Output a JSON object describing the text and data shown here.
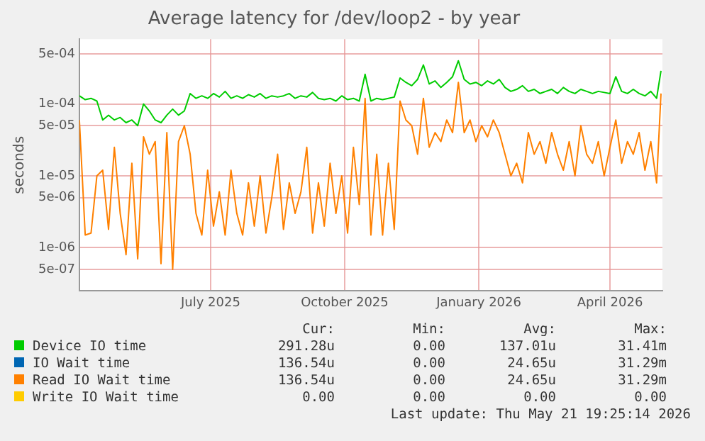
{
  "chart_data": {
    "type": "line",
    "title": "Average latency for /dev/loop2 - by year",
    "ylabel": "seconds",
    "log": true,
    "grid": true,
    "legend": "bottom",
    "marker": "none",
    "line_style": "solid",
    "x": [
      "2025-04-17",
      "2025-04-21",
      "2025-04-25",
      "2025-04-29",
      "2025-05-03",
      "2025-05-07",
      "2025-05-11",
      "2025-05-15",
      "2025-05-19",
      "2025-05-23",
      "2025-05-27",
      "2025-05-31",
      "2025-06-04",
      "2025-06-08",
      "2025-06-12",
      "2025-06-16",
      "2025-06-20",
      "2025-06-24",
      "2025-06-28",
      "2025-07-02",
      "2025-07-06",
      "2025-07-10",
      "2025-07-14",
      "2025-07-18",
      "2025-07-22",
      "2025-07-26",
      "2025-07-30",
      "2025-08-03",
      "2025-08-07",
      "2025-08-11",
      "2025-08-15",
      "2025-08-19",
      "2025-08-23",
      "2025-08-27",
      "2025-08-31",
      "2025-09-04",
      "2025-09-08",
      "2025-09-12",
      "2025-09-16",
      "2025-09-20",
      "2025-09-24",
      "2025-09-28",
      "2025-10-02",
      "2025-10-06",
      "2025-10-10",
      "2025-10-14",
      "2025-10-18",
      "2025-10-22",
      "2025-10-26",
      "2025-10-30",
      "2025-11-03",
      "2025-11-07",
      "2025-11-11",
      "2025-11-15",
      "2025-11-19",
      "2025-11-23",
      "2025-11-27",
      "2025-12-01",
      "2025-12-05",
      "2025-12-09",
      "2025-12-13",
      "2025-12-17",
      "2025-12-21",
      "2025-12-25",
      "2025-12-29",
      "2026-01-02",
      "2026-01-06",
      "2026-01-10",
      "2026-01-14",
      "2026-01-18",
      "2026-01-22",
      "2026-01-26",
      "2026-01-30",
      "2026-02-03",
      "2026-02-07",
      "2026-02-11",
      "2026-02-15",
      "2026-02-19",
      "2026-02-23",
      "2026-02-27",
      "2026-03-03",
      "2026-03-07",
      "2026-03-11",
      "2026-03-15",
      "2026-03-19",
      "2026-03-23",
      "2026-03-27",
      "2026-03-31",
      "2026-04-04",
      "2026-04-08",
      "2026-04-12",
      "2026-04-16",
      "2026-04-20",
      "2026-04-24",
      "2026-04-28",
      "2026-05-02",
      "2026-05-06",
      "2026-05-10",
      "2026-05-14",
      "2026-05-18",
      "2026-05-21"
    ],
    "xlim": [
      "2025-04-17",
      "2026-05-22"
    ],
    "xticks": [
      {
        "value": "2025-07-16",
        "label": "July 2025"
      },
      {
        "value": "2025-10-16",
        "label": "October 2025"
      },
      {
        "value": "2026-01-16",
        "label": "January 2026"
      },
      {
        "value": "2026-04-16",
        "label": "April 2026"
      }
    ],
    "ylim": [
      2.5e-07,
      0.0008
    ],
    "yticks": [
      {
        "value": 5e-07,
        "label": "5e-07"
      },
      {
        "value": 1e-06,
        "label": "1e-06"
      },
      {
        "value": 5e-06,
        "label": "5e-06"
      },
      {
        "value": 1e-05,
        "label": "1e-05"
      },
      {
        "value": 5e-05,
        "label": "5e-05"
      },
      {
        "value": 0.0001,
        "label": "1e-04"
      },
      {
        "value": 0.0005,
        "label": "5e-04"
      }
    ],
    "series": [
      {
        "name": "Device IO time",
        "color": "#00cc00",
        "values": [
          0.00013,
          0.000115,
          0.00012,
          0.00011,
          6e-05,
          7e-05,
          6e-05,
          6.5e-05,
          5.5e-05,
          6e-05,
          5e-05,
          0.0001,
          8e-05,
          6e-05,
          5.5e-05,
          7e-05,
          8.5e-05,
          7e-05,
          8e-05,
          0.00014,
          0.00012,
          0.00013,
          0.00012,
          0.00014,
          0.000125,
          0.00015,
          0.00012,
          0.00013,
          0.00012,
          0.000135,
          0.000125,
          0.00014,
          0.00012,
          0.00013,
          0.000125,
          0.00013,
          0.00014,
          0.00012,
          0.00013,
          0.000125,
          0.000145,
          0.00012,
          0.000115,
          0.00012,
          0.00011,
          0.00013,
          0.000115,
          0.00012,
          0.00011,
          0.00026,
          0.00011,
          0.00012,
          0.000115,
          0.00012,
          0.000125,
          0.00023,
          0.0002,
          0.00018,
          0.00022,
          0.00035,
          0.00019,
          0.00021,
          0.00017,
          0.0002,
          0.00024,
          0.0004,
          0.00022,
          0.00019,
          0.0002,
          0.00018,
          0.00021,
          0.00019,
          0.00022,
          0.00017,
          0.00015,
          0.00016,
          0.00018,
          0.00015,
          0.00016,
          0.00014,
          0.00015,
          0.00016,
          0.00014,
          0.00017,
          0.00015,
          0.00014,
          0.00016,
          0.00015,
          0.00014,
          0.00015,
          0.000145,
          0.00014,
          0.00024,
          0.00015,
          0.00014,
          0.00016,
          0.00014,
          0.00013,
          0.00015,
          0.00012,
          0.00029
        ]
      },
      {
        "name": "IO Wait time",
        "color": "#0066b3",
        "values": [
          null,
          null,
          null,
          null,
          null,
          null,
          null,
          null,
          null,
          null,
          null,
          null,
          null,
          null,
          null,
          null,
          null,
          null,
          null,
          null,
          null,
          null,
          null,
          null,
          null,
          null,
          null,
          null,
          null,
          null,
          null,
          null,
          null,
          null,
          null,
          null,
          null,
          null,
          null,
          null,
          null,
          null,
          null,
          null,
          null,
          null,
          null,
          null,
          null,
          null,
          null,
          null,
          null,
          null,
          null,
          null,
          null,
          null,
          null,
          null,
          null,
          null,
          null,
          null,
          null,
          null,
          null,
          null,
          null,
          null,
          null,
          null,
          null,
          null,
          null,
          null,
          null,
          null,
          null,
          null,
          null,
          null,
          null,
          null,
          null,
          null,
          null,
          null,
          null,
          null,
          null,
          null,
          null,
          null,
          null,
          null,
          null,
          null,
          null,
          null,
          null
        ]
      },
      {
        "name": "Read IO Wait time",
        "color": "#ff8000",
        "values": [
          6e-05,
          1.5e-06,
          1.6e-06,
          1e-05,
          1.2e-05,
          1.8e-06,
          2.5e-05,
          3e-06,
          8e-07,
          1.5e-05,
          7e-07,
          3.5e-05,
          2e-05,
          3e-05,
          6e-07,
          4e-05,
          5e-07,
          3e-05,
          5e-05,
          2e-05,
          3e-06,
          1.5e-06,
          1.2e-05,
          2e-06,
          6e-06,
          1.5e-06,
          1.2e-05,
          3e-06,
          1.5e-06,
          8e-06,
          2e-06,
          1e-05,
          1.6e-06,
          5e-06,
          2e-05,
          1.8e-06,
          8e-06,
          3e-06,
          6e-06,
          2.5e-05,
          1.6e-06,
          8e-06,
          2e-06,
          1.5e-05,
          3e-06,
          1e-05,
          1.6e-06,
          2.5e-05,
          4e-06,
          0.00012,
          1.5e-06,
          2e-05,
          1.5e-06,
          1.5e-05,
          1.8e-06,
          0.00011,
          6e-05,
          5e-05,
          2e-05,
          0.00012,
          2.5e-05,
          4e-05,
          3e-05,
          6e-05,
          4e-05,
          0.0002,
          4e-05,
          6e-05,
          3e-05,
          5e-05,
          3.5e-05,
          6e-05,
          4e-05,
          2e-05,
          1e-05,
          1.5e-05,
          8e-06,
          4e-05,
          2e-05,
          3e-05,
          1.5e-05,
          4e-05,
          2e-05,
          1.2e-05,
          3e-05,
          1e-05,
          5e-05,
          2e-05,
          1.5e-05,
          3e-05,
          1e-05,
          2.5e-05,
          6e-05,
          1.5e-05,
          3e-05,
          2e-05,
          4e-05,
          1.2e-05,
          3e-05,
          8e-06,
          0.00014
        ]
      },
      {
        "name": "Write IO Wait time",
        "color": "#ffcc00",
        "values": [
          null,
          null,
          null,
          null,
          null,
          null,
          null,
          null,
          null,
          null,
          null,
          null,
          null,
          null,
          null,
          null,
          null,
          null,
          null,
          null,
          null,
          null,
          null,
          null,
          null,
          null,
          null,
          null,
          null,
          null,
          null,
          null,
          null,
          null,
          null,
          null,
          null,
          null,
          null,
          null,
          null,
          null,
          null,
          null,
          null,
          null,
          null,
          null,
          null,
          null,
          null,
          null,
          null,
          null,
          null,
          null,
          null,
          null,
          null,
          null,
          null,
          null,
          null,
          null,
          null,
          null,
          null,
          null,
          null,
          null,
          null,
          null,
          null,
          null,
          null,
          null,
          null,
          null,
          null,
          null,
          null,
          null,
          null,
          null,
          null,
          null,
          null,
          null,
          null,
          null,
          null,
          null,
          null,
          null,
          null,
          null,
          null,
          null,
          null,
          null,
          null
        ]
      }
    ],
    "annotations": [
      "Cur:",
      "Min:",
      "Avg:",
      "Max:",
      "291.28u",
      "0.00",
      "137.01u",
      "31.41m",
      "136.54u",
      "0.00",
      "24.65u",
      "31.29m",
      "136.54u",
      "0.00",
      "24.65u",
      "31.29m",
      "0.00",
      "0.00",
      "0.00",
      "0.00",
      "Last update: Thu May 21 19:25:14 2026"
    ]
  }
}
